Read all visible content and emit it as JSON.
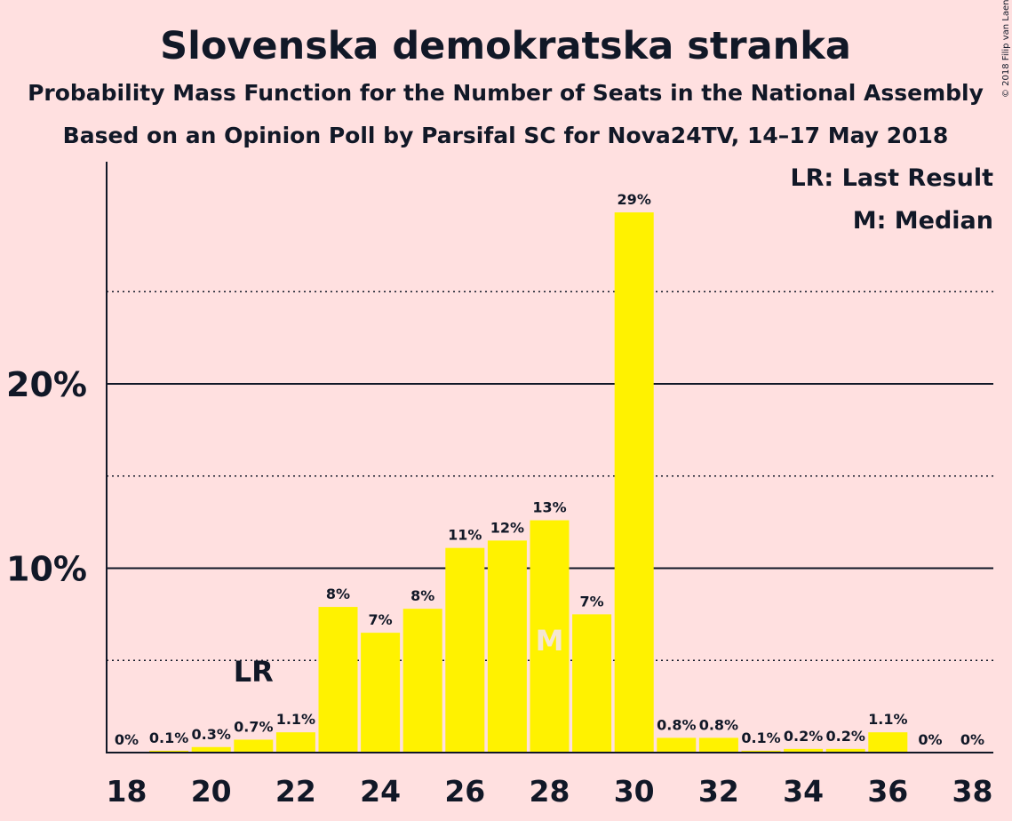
{
  "chart_data": {
    "type": "bar",
    "title": "Slovenska demokratska stranka",
    "subtitle1": "Probability Mass Function for the Number of Seats in the National Assembly",
    "subtitle2": "Based on an Opinion Poll by Parsifal SC for Nova24TV, 14–17 May 2018",
    "copyright": "© 2018 Filip van Laenen",
    "legend": {
      "lr": "LR: Last Result",
      "m": "M: Median",
      "placement": "top-right"
    },
    "x": [
      18,
      19,
      20,
      21,
      22,
      23,
      24,
      25,
      26,
      27,
      28,
      29,
      30,
      31,
      32,
      33,
      34,
      35,
      36,
      37,
      38
    ],
    "values": [
      0,
      0.1,
      0.3,
      0.7,
      1.1,
      7.9,
      6.5,
      7.8,
      11.1,
      11.5,
      12.6,
      7.5,
      29.3,
      0.8,
      0.8,
      0.1,
      0.2,
      0.2,
      1.1,
      0,
      0
    ],
    "labels": [
      "0%",
      "0.1%",
      "0.3%",
      "0.7%",
      "1.1%",
      "8%",
      "7%",
      "8%",
      "11%",
      "12%",
      "13%",
      "7%",
      "29%",
      "0.8%",
      "0.8%",
      "0.1%",
      "0.2%",
      "0.2%",
      "1.1%",
      "0%",
      "0%"
    ],
    "x_ticks": [
      "18",
      "20",
      "22",
      "24",
      "26",
      "28",
      "30",
      "32",
      "34",
      "36",
      "38"
    ],
    "y_ticks": [
      {
        "value": 10,
        "label": "10%"
      },
      {
        "value": 20,
        "label": "20%"
      }
    ],
    "minor_grid": [
      5,
      15,
      25
    ],
    "ylim": [
      0,
      32
    ],
    "last_result": {
      "x": 21,
      "marker": "LR"
    },
    "median": {
      "x": 28,
      "marker": "M"
    },
    "colors": {
      "bar": "#FFF200",
      "background": "#FFE0E0",
      "text": "#111827",
      "median_marker": "#F5E6D3"
    }
  }
}
